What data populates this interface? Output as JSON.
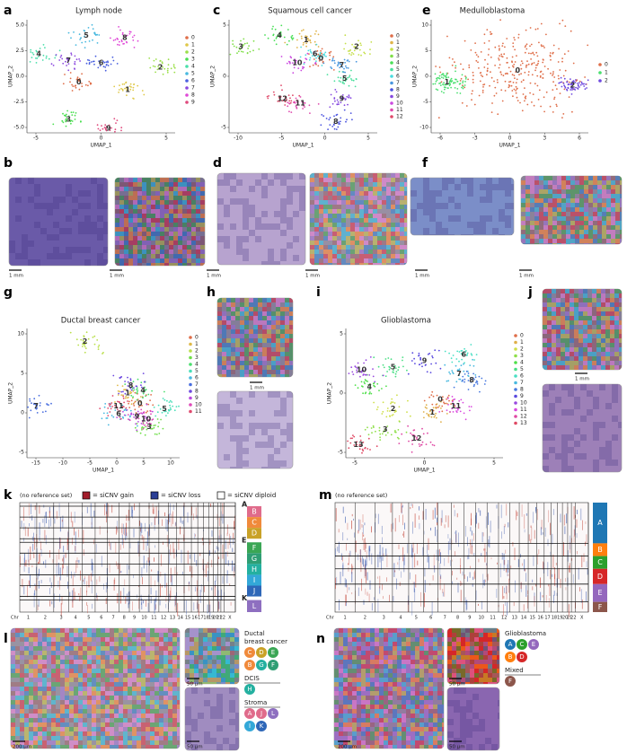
{
  "panels": {
    "a": {
      "letter": "a",
      "title": "Lymph node",
      "x_label": "UMAP_1",
      "y_label": "UMAP_2",
      "x_ticks": [
        "-5",
        "0",
        "5"
      ],
      "y_ticks": [
        "5.0",
        "2.5",
        "0.0",
        "-2.5",
        "-5.0"
      ],
      "legend": [
        "0",
        "1",
        "2",
        "3",
        "4",
        "5",
        "6",
        "7",
        "8",
        "9"
      ]
    },
    "b": {
      "letter": "b",
      "scale_bars": [
        "1 mm",
        "1 mm"
      ]
    },
    "c": {
      "letter": "c",
      "title": "Squamous cell cancer",
      "x_label": "UMAP_1",
      "y_label": "UMAP_2",
      "x_ticks": [
        "-10",
        "-5",
        "0",
        "5"
      ],
      "y_ticks": [
        "5",
        "0",
        "-5"
      ],
      "legend": [
        "0",
        "1",
        "2",
        "3",
        "4",
        "5",
        "6",
        "7",
        "8",
        "9",
        "10",
        "11",
        "12"
      ]
    },
    "d": {
      "letter": "d",
      "scale_bars": [
        "1 mm",
        "1 mm"
      ]
    },
    "e": {
      "letter": "e",
      "title": "Medulloblastoma",
      "x_label": "UMAP_1",
      "y_label": "UMAP_2",
      "x_ticks": [
        "-6",
        "-3",
        "0",
        "3",
        "6"
      ],
      "y_ticks": [
        "10",
        "5",
        "0",
        "-5",
        "-10"
      ],
      "legend": [
        "0",
        "1",
        "2"
      ]
    },
    "f": {
      "letter": "f",
      "scale_bars": [
        "1 mm",
        "1 mm"
      ]
    },
    "g": {
      "letter": "g",
      "title": "Ductal breast cancer",
      "x_label": "UMAP_1",
      "y_label": "UMAP_2",
      "x_ticks": [
        "-15",
        "-10",
        "-5",
        "0",
        "5",
        "10"
      ],
      "y_ticks": [
        "10",
        "5",
        "0",
        "-5"
      ],
      "legend": [
        "0",
        "1",
        "2",
        "3",
        "4",
        "5",
        "6",
        "7",
        "8",
        "9",
        "10",
        "11"
      ]
    },
    "h": {
      "letter": "h",
      "scale_bars": [
        "1 mm"
      ]
    },
    "i": {
      "letter": "i",
      "title": "Glioblastoma",
      "x_label": "UMAP_1",
      "y_label": "UMAP_2",
      "x_ticks": [
        "-5",
        "0",
        "5"
      ],
      "y_ticks": [
        "5",
        "0",
        "-5"
      ],
      "legend": [
        "0",
        "1",
        "2",
        "3",
        "4",
        "5",
        "6",
        "7",
        "8",
        "9",
        "10",
        "11",
        "12",
        "13"
      ]
    },
    "j": {
      "letter": "j",
      "scale_bars": [
        "1 mm"
      ]
    },
    "k": {
      "letter": "k",
      "note": "(no reference set)",
      "key": [
        "= siCNV gain",
        "= siCNV loss",
        "= siCNV diploid"
      ],
      "groups": [
        "A",
        "B",
        "C",
        "D",
        "E",
        "F",
        "G",
        "H",
        "I",
        "J",
        "K",
        "L"
      ],
      "chromosomes": [
        "Chr",
        "1",
        "2",
        "3",
        "4",
        "5",
        "6",
        "7",
        "8",
        "9",
        "10",
        "11",
        "12",
        "13",
        "14",
        "15",
        "16",
        "17",
        "18",
        "19",
        "20",
        "21",
        "22",
        "X"
      ]
    },
    "m": {
      "letter": "m",
      "note": "(no reference set)",
      "groups": [
        "A",
        "B",
        "C",
        "D",
        "E",
        "F"
      ],
      "chromosomes": [
        "Chr",
        "1",
        "2",
        "3",
        "4",
        "5",
        "6",
        "7",
        "8",
        "9",
        "10",
        "11",
        "12",
        "13",
        "14",
        "15",
        "16",
        "17",
        "18",
        "19",
        "20",
        "21",
        "22",
        "X"
      ]
    },
    "l": {
      "letter": "l",
      "scale_bars": [
        "200 µm",
        "50 µm",
        "50 µm"
      ],
      "legend": [
        {
          "title": [
            "Ductal",
            "breast cancer"
          ],
          "rows": [
            [
              "C",
              "D",
              "E"
            ],
            [
              "B",
              "G",
              "F"
            ]
          ]
        },
        {
          "title": [
            "DCIS"
          ],
          "rows": [
            [
              "H"
            ]
          ]
        },
        {
          "title": [
            "Stroma"
          ],
          "rows": [
            [
              "A",
              "J",
              "L"
            ],
            [
              "I",
              "K"
            ]
          ]
        }
      ]
    },
    "n": {
      "letter": "n",
      "scale_bars": [
        "200 µm",
        "50 µm",
        "50 µm"
      ],
      "legend": [
        {
          "title": [
            "Glioblastoma"
          ],
          "rows": [
            [
              "A",
              "C",
              "E"
            ],
            [
              "B",
              "D"
            ]
          ]
        },
        {
          "title": [
            "Mixed"
          ],
          "rows": [
            [
              "F"
            ]
          ]
        }
      ]
    }
  }
}
